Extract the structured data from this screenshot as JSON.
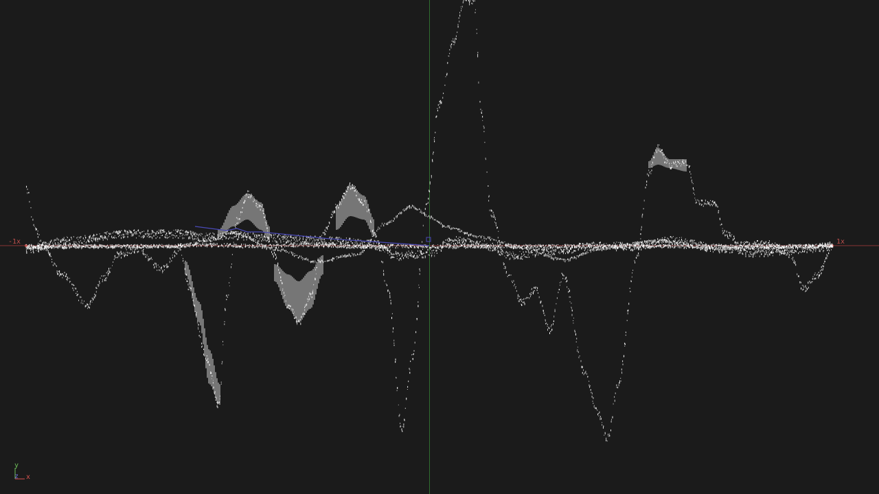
{
  "viewport": {
    "axis_labels": {
      "x_negative": "-1x",
      "x_positive": "1x"
    },
    "colors": {
      "background": "#1b1b1b",
      "x_axis": "#8a3434",
      "y_axis": "#2f6e2f",
      "curve": "#ffffff",
      "motion_line": "#4a4ab8",
      "axis_text": "#c0504d"
    }
  },
  "gizmo": {
    "y_label": "y",
    "z_label": "z",
    "x_label": "x"
  }
}
